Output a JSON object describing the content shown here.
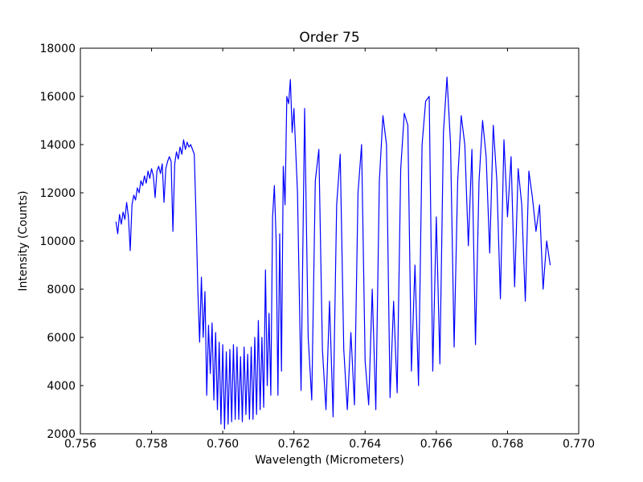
{
  "chart_data": {
    "type": "line",
    "title": "Order 75",
    "xlabel": "Wavelength (Micrometers)",
    "ylabel": "Intensity (Counts)",
    "xlim": [
      0.756,
      0.77
    ],
    "ylim": [
      2000,
      18000
    ],
    "xticks": [
      0.756,
      0.758,
      {
        "value": 0.76,
        "label": "0.760"
      },
      0.762,
      0.764,
      0.766,
      0.768,
      {
        "value": 0.77,
        "label": "0.770"
      }
    ],
    "yticks": [
      2000,
      4000,
      6000,
      8000,
      10000,
      12000,
      14000,
      16000,
      18000
    ],
    "grid": false,
    "series": [
      {
        "name": "Order 75",
        "color": "#0000ff",
        "x": [
          0.757,
          0.75705,
          0.7571,
          0.75715,
          0.7572,
          0.75725,
          0.7573,
          0.75735,
          0.7574,
          0.75745,
          0.7575,
          0.75755,
          0.7576,
          0.75765,
          0.7577,
          0.75775,
          0.7578,
          0.75785,
          0.7579,
          0.75795,
          0.758,
          0.75805,
          0.7581,
          0.75815,
          0.7582,
          0.75825,
          0.7583,
          0.75835,
          0.7584,
          0.75845,
          0.7585,
          0.75855,
          0.7586,
          0.75865,
          0.7587,
          0.75875,
          0.7588,
          0.75885,
          0.7589,
          0.75895,
          0.759,
          0.75905,
          0.7591,
          0.75915,
          0.7592,
          0.75925,
          0.7593,
          0.75935,
          0.7594,
          0.75945,
          0.7595,
          0.75955,
          0.7596,
          0.75965,
          0.7597,
          0.75975,
          0.7598,
          0.75985,
          0.7599,
          0.75995,
          0.76,
          0.76005,
          0.7601,
          0.76015,
          0.7602,
          0.76025,
          0.7603,
          0.76035,
          0.7604,
          0.76045,
          0.7605,
          0.76055,
          0.7606,
          0.76065,
          0.7607,
          0.76075,
          0.7608,
          0.76085,
          0.7609,
          0.76095,
          0.761,
          0.76105,
          0.7611,
          0.76115,
          0.7612,
          0.76125,
          0.7613,
          0.76135,
          0.7614,
          0.76145,
          0.7615,
          0.76155,
          0.7616,
          0.76165,
          0.7617,
          0.76175,
          0.7618,
          0.76185,
          0.7619,
          0.76195,
          0.762,
          0.7621,
          0.7622,
          0.7623,
          0.7624,
          0.7625,
          0.7626,
          0.7627,
          0.7628,
          0.7629,
          0.763,
          0.7631,
          0.7632,
          0.7633,
          0.7634,
          0.7635,
          0.7636,
          0.7637,
          0.7638,
          0.7639,
          0.764,
          0.7641,
          0.7642,
          0.7643,
          0.7644,
          0.7645,
          0.7646,
          0.7647,
          0.7648,
          0.7649,
          0.765,
          0.7651,
          0.7652,
          0.7653,
          0.7654,
          0.7655,
          0.7656,
          0.7657,
          0.7658,
          0.7659,
          0.766,
          0.7661,
          0.7662,
          0.7663,
          0.7664,
          0.7665,
          0.7666,
          0.7667,
          0.7668,
          0.7669,
          0.767,
          0.7671,
          0.7672,
          0.7673,
          0.7674,
          0.7675,
          0.7676,
          0.7677,
          0.7678,
          0.7679,
          0.768,
          0.7681,
          0.7682,
          0.7683,
          0.7684,
          0.7685,
          0.7686,
          0.7687,
          0.7688,
          0.7689,
          0.769,
          0.7691,
          0.7692
        ],
        "values": [
          10800,
          10300,
          11100,
          10700,
          11200,
          10900,
          11600,
          11000,
          9600,
          11500,
          11900,
          11700,
          12200,
          12000,
          12500,
          12300,
          12700,
          12400,
          12900,
          12600,
          13000,
          12700,
          11800,
          12900,
          13100,
          12800,
          13200,
          11600,
          13000,
          13300,
          13500,
          13300,
          10400,
          13200,
          13700,
          13400,
          13900,
          13600,
          14200,
          13800,
          14100,
          13900,
          14000,
          13800,
          13600,
          11000,
          8000,
          5800,
          8500,
          6000,
          7900,
          3600,
          6500,
          4500,
          6600,
          3400,
          6200,
          3000,
          5800,
          2400,
          5700,
          2200,
          5400,
          2400,
          5500,
          2500,
          5700,
          2600,
          5600,
          2600,
          5200,
          2500,
          5600,
          2800,
          5300,
          2600,
          5600,
          2600,
          6000,
          2800,
          6700,
          3000,
          6000,
          3100,
          8800,
          4000,
          7000,
          3600,
          11000,
          12300,
          10000,
          3600,
          10300,
          4600,
          13100,
          11500,
          16000,
          15700,
          16700,
          14500,
          15500,
          12000,
          3800,
          15500,
          6000,
          3400,
          12500,
          13800,
          5500,
          3000,
          7500,
          2700,
          11500,
          13600,
          5500,
          3000,
          6200,
          3200,
          12000,
          14000,
          5000,
          3200,
          8000,
          3000,
          12500,
          15200,
          14000,
          3500,
          7500,
          3700,
          13000,
          15300,
          14800,
          4600,
          9000,
          4000,
          14000,
          15800,
          16000,
          4600,
          11000,
          4900,
          14500,
          16800,
          14000,
          5600,
          12500,
          15200,
          14000,
          9800,
          13800,
          5700,
          12500,
          15000,
          13500,
          9500,
          14800,
          12500,
          7600,
          14200,
          11000,
          13500,
          8100,
          13000,
          11500,
          7500,
          12900,
          11800,
          10400,
          11500,
          8000,
          10000,
          9000
        ]
      }
    ]
  }
}
